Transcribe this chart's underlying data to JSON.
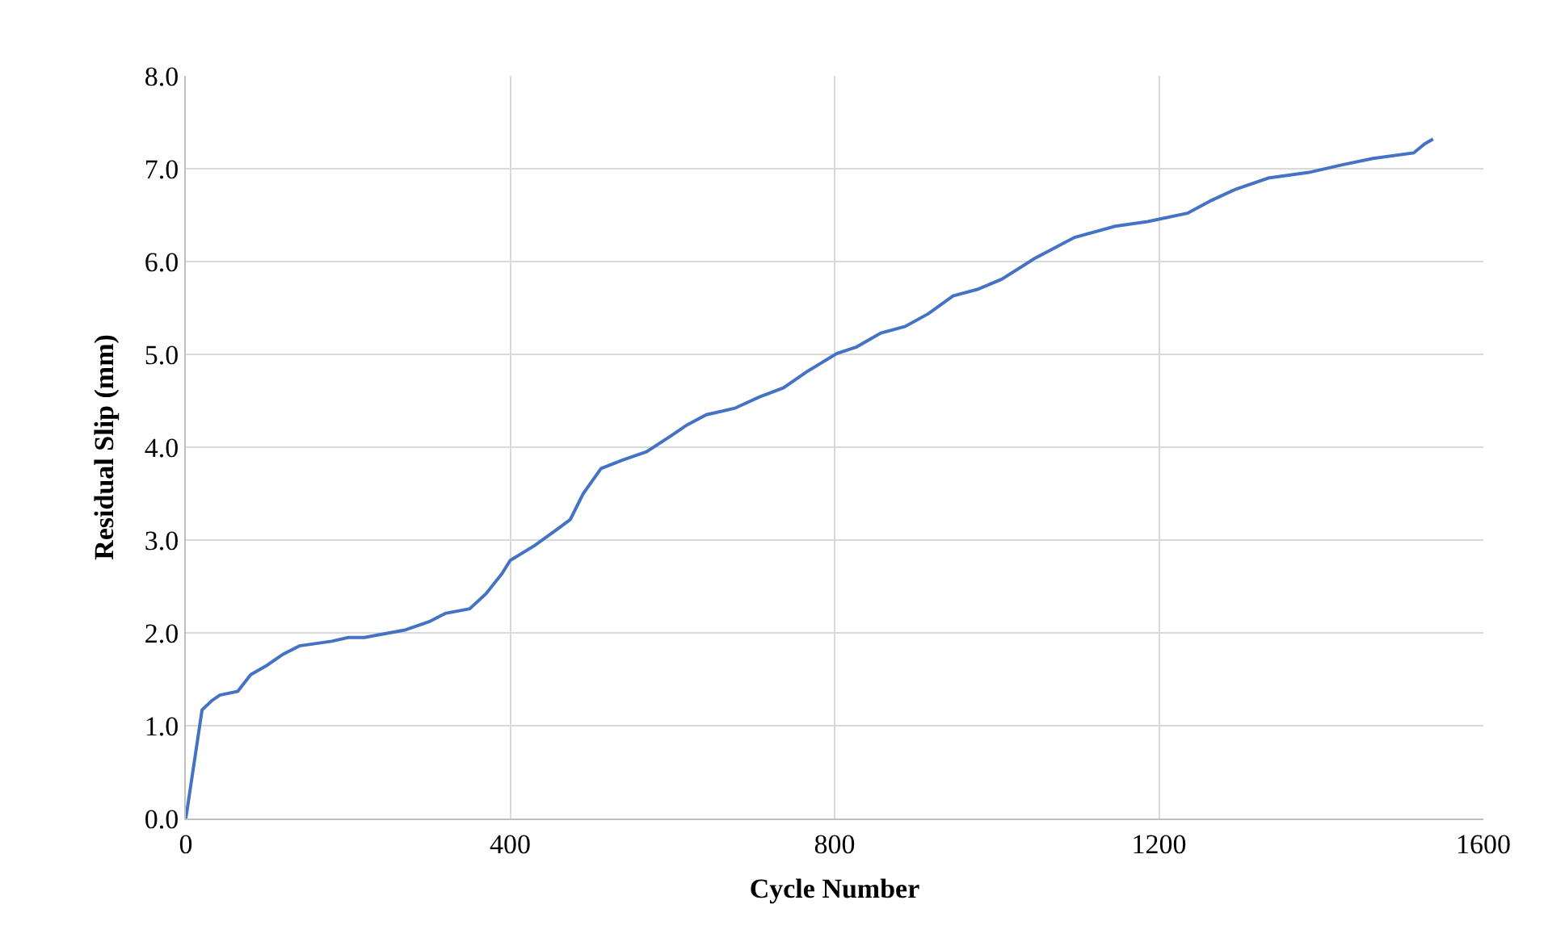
{
  "chart_data": {
    "type": "line",
    "xlabel": "Cycle Number",
    "ylabel": "Residual Slip (mm)",
    "x": [
      0,
      20,
      32,
      42,
      64,
      80,
      100,
      120,
      140,
      180,
      200,
      220,
      270,
      300,
      320,
      350,
      370,
      390,
      400,
      430,
      460,
      474,
      490,
      512,
      538,
      568,
      598,
      618,
      642,
      677,
      707,
      737,
      767,
      803,
      827,
      857,
      887,
      916,
      946,
      976,
      1006,
      1046,
      1096,
      1146,
      1186,
      1235,
      1265,
      1295,
      1335,
      1385,
      1425,
      1464,
      1514,
      1528,
      1538
    ],
    "series": [
      {
        "color": "#4472c4",
        "values": [
          0,
          1.17,
          1.27,
          1.33,
          1.37,
          1.55,
          1.65,
          1.77,
          1.86,
          1.91,
          1.95,
          1.95,
          2.03,
          2.12,
          2.21,
          2.26,
          2.42,
          2.64,
          2.78,
          2.94,
          3.13,
          3.22,
          3.5,
          3.77,
          3.86,
          3.95,
          4.12,
          4.24,
          4.35,
          4.42,
          4.54,
          4.64,
          4.82,
          5.01,
          5.08,
          5.23,
          5.3,
          5.44,
          5.63,
          5.7,
          5.81,
          6.03,
          6.26,
          6.38,
          6.43,
          6.52,
          6.66,
          6.78,
          6.9,
          6.96,
          7.04,
          7.11,
          7.17,
          7.27,
          7.32
        ]
      }
    ],
    "xlim": [
      0,
      1600
    ],
    "xticks": [
      0,
      400,
      800,
      1200,
      1600
    ],
    "ylim": [
      0,
      8
    ],
    "yticks": [
      {
        "value": 0,
        "label": "0.0"
      },
      {
        "value": 1,
        "label": "1.0"
      },
      {
        "value": 2,
        "label": "2.0"
      },
      {
        "value": 3,
        "label": "3.0"
      },
      {
        "value": 4,
        "label": "4.0"
      },
      {
        "value": 5,
        "label": "5.0"
      },
      {
        "value": 6,
        "label": "6.0"
      },
      {
        "value": 7,
        "label": "7.0"
      },
      {
        "value": 8,
        "label": "8.0"
      }
    ],
    "grid": true,
    "marker": "none",
    "line_style": "solid"
  }
}
